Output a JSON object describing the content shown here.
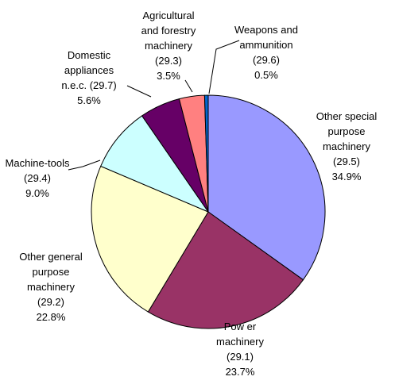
{
  "chart_data": {
    "type": "pie",
    "start_angle_deg": -90,
    "direction": "clockwise",
    "slices": [
      {
        "label_lines": [
          "Other special",
          "purpose",
          "machinery",
          "(29.5)"
        ],
        "pct_text": "34.9%",
        "value": 34.9,
        "color": "#9999FF"
      },
      {
        "label_lines": [
          "Pow er",
          "machinery",
          "(29.1)"
        ],
        "pct_text": "23.7%",
        "value": 23.7,
        "color": "#993366"
      },
      {
        "label_lines": [
          "Other general",
          "purpose",
          "machinery",
          "(29.2)"
        ],
        "pct_text": "22.8%",
        "value": 22.8,
        "color": "#FFFFCC"
      },
      {
        "label_lines": [
          "Machine-tools",
          "(29.4)"
        ],
        "pct_text": "9.0%",
        "value": 9.0,
        "color": "#CCFFFF"
      },
      {
        "label_lines": [
          "Domestic",
          "appliances",
          "n.e.c. (29.7)"
        ],
        "pct_text": "5.6%",
        "value": 5.6,
        "color": "#660066"
      },
      {
        "label_lines": [
          "Agricultural",
          "and forestry",
          "machinery",
          "(29.3)"
        ],
        "pct_text": "3.5%",
        "value": 3.5,
        "color": "#FF8080"
      },
      {
        "label_lines": [
          "Weapons and",
          "ammunition",
          "(29.6)"
        ],
        "pct_text": "0.5%",
        "value": 0.5,
        "color": "#0066CC"
      }
    ]
  }
}
